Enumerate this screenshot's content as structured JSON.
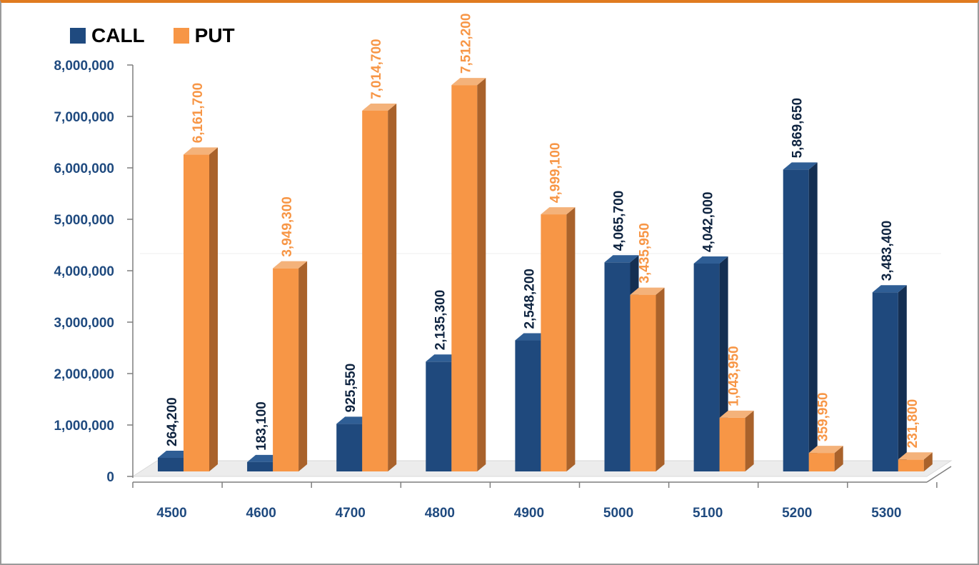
{
  "chart_data": {
    "type": "bar",
    "categories": [
      "4500",
      "4600",
      "4700",
      "4800",
      "4900",
      "5000",
      "5100",
      "5200",
      "5300"
    ],
    "series": [
      {
        "name": "CALL",
        "color": "#1f4a7f",
        "values": [
          264200,
          183100,
          925550,
          2135300,
          2548200,
          4065700,
          4042000,
          5869650,
          3483400
        ],
        "labels": [
          "264,200",
          "183,100",
          "925,550",
          "2,135,300",
          "2,548,200",
          "4,065,700",
          "4,042,000",
          "5,869,650",
          "3,483,400"
        ]
      },
      {
        "name": "PUT",
        "color": "#f79646",
        "values": [
          6161700,
          3949300,
          7014700,
          7512200,
          4999100,
          3435950,
          1043950,
          359950,
          231800
        ],
        "labels": [
          "6,161,700",
          "3,949,300",
          "7,014,700",
          "7,512,200",
          "4,999,100",
          "3,435,950",
          "1,043,950",
          "359,950",
          "231,800"
        ]
      }
    ],
    "ylim": [
      0,
      8000000
    ],
    "yticks": [
      "0",
      "1,000,000",
      "2,000,000",
      "3,000,000",
      "4,000,000",
      "5,000,000",
      "6,000,000",
      "7,000,000",
      "8,000,000"
    ],
    "tick_color": "#1f4a7f",
    "legend_position": "top-left",
    "grid": false,
    "style": "3d-column"
  }
}
